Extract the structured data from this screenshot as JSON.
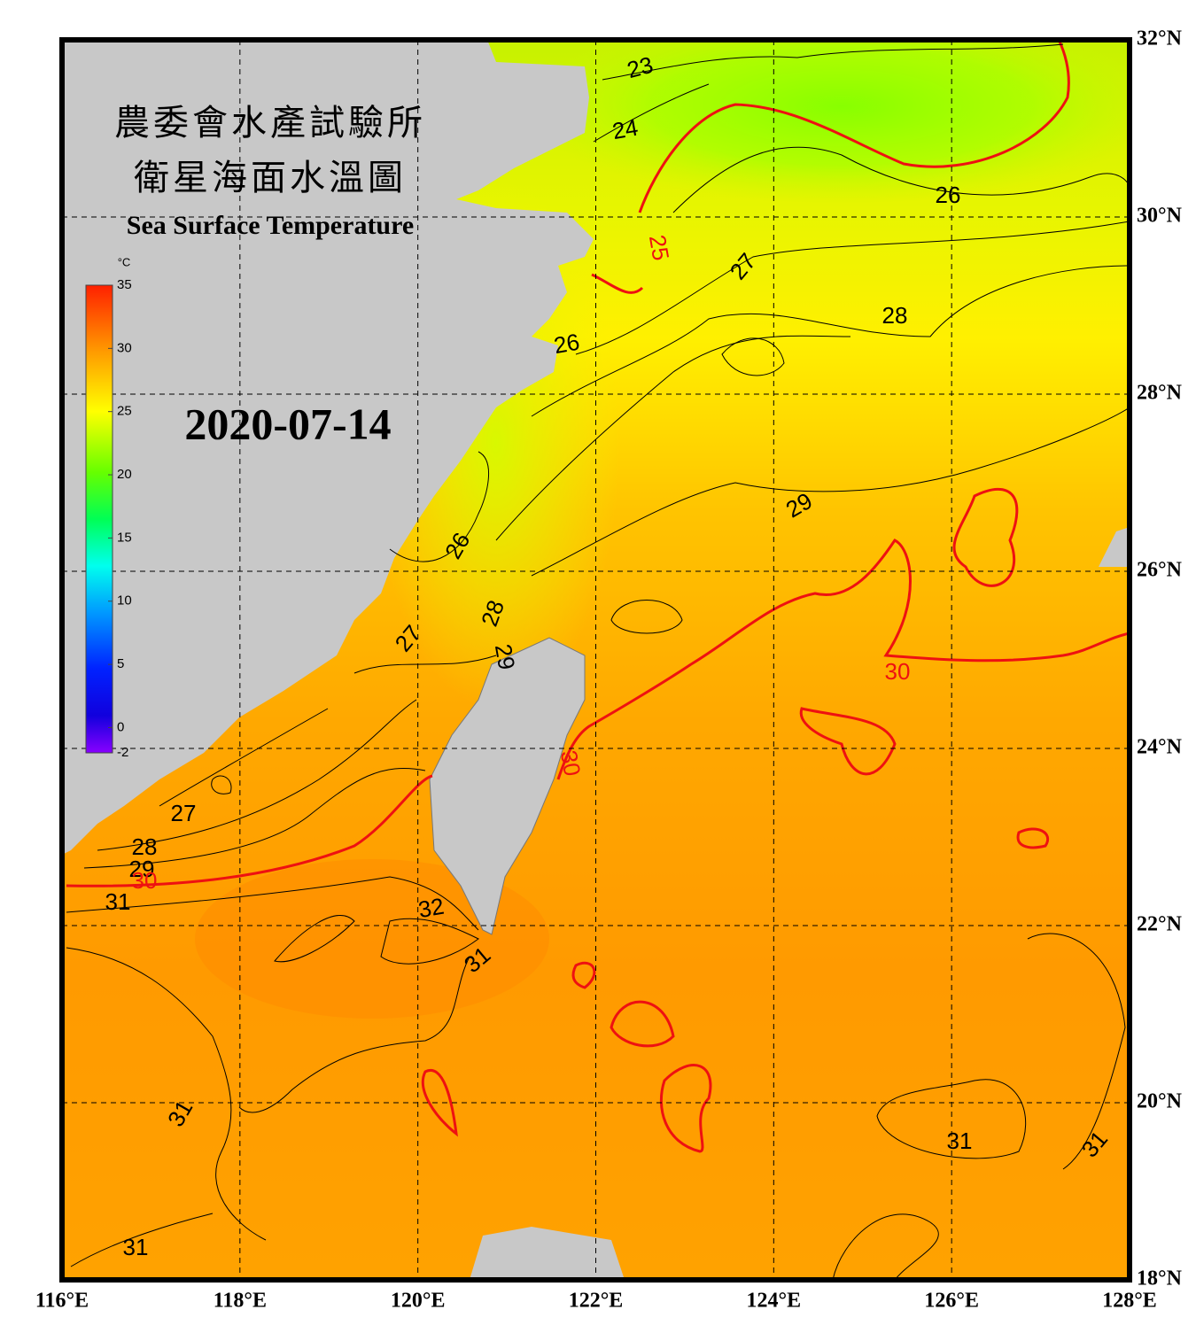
{
  "header": {
    "title_line1": "農委會水產試驗所",
    "title_line2": "衛星海面水溫圖",
    "subtitle": "Sea Surface Temperature",
    "date": "2020-07-14"
  },
  "colorbar": {
    "unit": "°C",
    "range": [
      -2,
      35
    ],
    "ticks": [
      35,
      30,
      25,
      20,
      15,
      10,
      5,
      0,
      -2
    ]
  },
  "axes": {
    "lat_range": [
      18,
      32
    ],
    "lon_range": [
      116,
      128
    ],
    "lat_labels": [
      {
        "value": 32,
        "label": "32°N"
      },
      {
        "value": 30,
        "label": "30°N"
      },
      {
        "value": 28,
        "label": "28°N"
      },
      {
        "value": 26,
        "label": "26°N"
      },
      {
        "value": 24,
        "label": "24°N"
      },
      {
        "value": 22,
        "label": "22°N"
      },
      {
        "value": 20,
        "label": "20°N"
      },
      {
        "value": 18,
        "label": "18°N"
      }
    ],
    "lon_labels": [
      {
        "value": 116,
        "label": "116°E"
      },
      {
        "value": 118,
        "label": "118°E"
      },
      {
        "value": 120,
        "label": "120°E"
      },
      {
        "value": 122,
        "label": "122°E"
      },
      {
        "value": 124,
        "label": "124°E"
      },
      {
        "value": 126,
        "label": "126°E"
      },
      {
        "value": 128,
        "label": "128°E"
      }
    ]
  },
  "contour_labels": [
    "23",
    "24",
    "26",
    "25",
    "27",
    "28",
    "26",
    "29",
    "26",
    "28",
    "27",
    "29",
    "30",
    "30",
    "27",
    "28",
    "29",
    "30",
    "31",
    "32",
    "31",
    "31",
    "31",
    "31",
    "31"
  ]
}
